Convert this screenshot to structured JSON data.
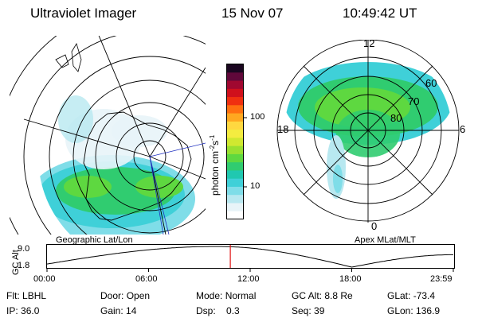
{
  "header": {
    "instrument": "Ultraviolet Imager",
    "date": "15 Nov 07",
    "time": "10:49:42 UT"
  },
  "left_panel": {
    "caption": "Geographic Lat/Lon"
  },
  "right_panel": {
    "caption": "Apex MLat/MLT",
    "mlt_labels": {
      "top": "12",
      "bottom": "0",
      "left": "18",
      "right": "6"
    },
    "mlat_labels": [
      "60",
      "70",
      "80"
    ]
  },
  "colorbar": {
    "unit_prefix": "photon cm",
    "unit_exp1": "-2",
    "unit_mid": "s",
    "unit_exp2": "-1",
    "ticks": [
      "100",
      "10"
    ],
    "colors": [
      "#ffffff",
      "#e8f4f8",
      "#b8e8f0",
      "#7fdde8",
      "#3fd0d8",
      "#20c8b0",
      "#30cc70",
      "#5ed840",
      "#9ae030",
      "#d0e830",
      "#f4ec40",
      "#ffd840",
      "#ffa820",
      "#ff7010",
      "#f03010",
      "#d0101c",
      "#a00830",
      "#60083a",
      "#1a0620"
    ]
  },
  "altitude_plot": {
    "ylabel": "GC Alt",
    "yticks": [
      "9.0",
      "1.8"
    ],
    "xticks": [
      "00:00",
      "06:00",
      "12:00",
      "18:00",
      "23:59"
    ],
    "current_time_hours": 10.83
  },
  "info": {
    "flt_label": "Flt:",
    "flt_value": "LBHL",
    "ip_label": "IP:",
    "ip_value": "36.0",
    "door_label": "Door:",
    "door_value": "Open",
    "gain_label": "Gain:",
    "gain_value": "14",
    "mode_label": "Mode:",
    "mode_value": "Normal",
    "dsp_label": "Dsp:",
    "dsp_value": "0.3",
    "gcalt_label": "GC Alt:",
    "gcalt_value": "8.8 Re",
    "seq_label": "Seq:",
    "seq_value": "39",
    "glat_label": "GLat:",
    "glat_value": "-73.4",
    "glon_label": "GLon:",
    "glon_value": "136.9"
  }
}
